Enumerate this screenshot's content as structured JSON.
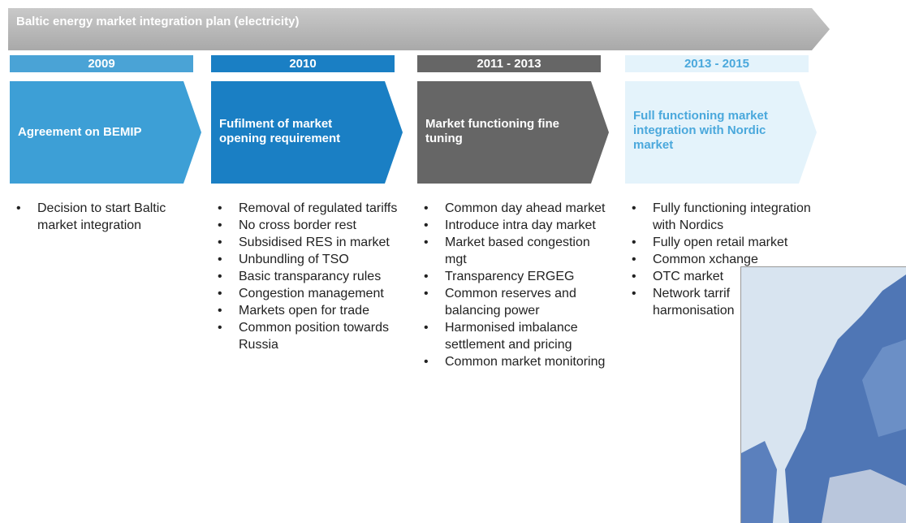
{
  "title": "Baltic energy market integration plan (electricity)",
  "phases": [
    {
      "period": "2009",
      "heading": "Agreement on BEMIP",
      "bullets": [
        "Decision to start Baltic market integration"
      ]
    },
    {
      "period": "2010",
      "heading": "Fufilment of market opening requirement",
      "bullets": [
        "Removal of regulated tariffs",
        "No cross border rest",
        "Subsidised RES in market",
        "Unbundling of TSO",
        "Basic transparancy rules",
        "Congestion management",
        "Markets open for trade",
        "Common position towards Russia"
      ]
    },
    {
      "period": "2011 - 2013",
      "heading": "Market functioning fine tuning",
      "bullets": [
        "Common day ahead market",
        "Introduce intra day market",
        "Market based congestion mgt",
        "Transparency ERGEG",
        "Common reserves and balancing power",
        "Harmonised imbalance settlement and pricing",
        "Common market monitoring"
      ]
    },
    {
      "period": "2013 - 2015",
      "heading": "Full functioning market integration with Nordic market",
      "bullets": [
        "Fully functioning integration with Nordics",
        "Fully open retail market",
        "Common xchange",
        "OTC market",
        "Network tarrif harmonisation"
      ]
    }
  ]
}
